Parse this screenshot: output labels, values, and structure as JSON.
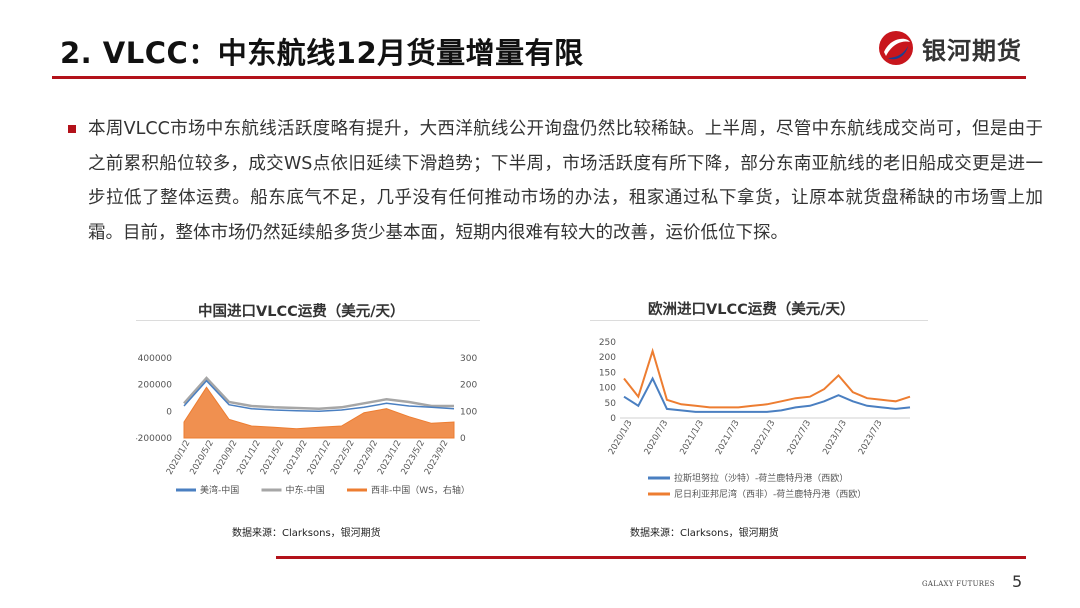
{
  "slide": {
    "title": "2. VLCC：中东航线12月货量增量有限",
    "logo_text": "银河期货",
    "paragraph": "本周VLCC市场中东航线活跃度略有提升，大西洋航线公开询盘仍然比较稀缺。上半周，尽管中东航线成交尚可，但是由于之前累积船位较多，成交WS点依旧延续下滑趋势；下半周，市场活跃度有所下降，部分东南亚航线的老旧船成交更是进一步拉低了整体运费。船东底气不足，几乎没有任何推动市场的办法，租家通过私下拿货，让原本就货盘稀缺的市场雪上加霜。目前，整体市场仍然延续船多货少基本面，短期内很难有较大的改善，运价低位下探。",
    "footer_brand": "GALAXY FUTURES",
    "page_number": "5",
    "colors": {
      "accent_red": "#b3121a"
    }
  },
  "chart_data": [
    {
      "type": "line",
      "title": "中国进口VLCC运费（美元/天）",
      "source": "数据来源：Clarksons，银河期货",
      "y_left": {
        "ticks": [
          "400000",
          "200000",
          "0",
          "-200000"
        ],
        "range": [
          -200000,
          400000
        ]
      },
      "y_right": {
        "ticks": [
          "300",
          "200",
          "100",
          "0"
        ],
        "range": [
          0,
          300
        ]
      },
      "x_ticks": [
        "2020/1/2",
        "2020/5/2",
        "2020/9/2",
        "2021/1/2",
        "2021/5/2",
        "2021/9/2",
        "2022/1/2",
        "2022/5/2",
        "2022/9/2",
        "2023/1/2",
        "2023/5/2",
        "2023/9/2"
      ],
      "legend_position": "bottom",
      "series": [
        {
          "name": "美湾-中国",
          "axis": "left",
          "color": "#4a7fc1",
          "values": [
            40000,
            230000,
            50000,
            20000,
            10000,
            5000,
            0,
            10000,
            30000,
            60000,
            40000,
            30000,
            20000
          ]
        },
        {
          "name": "中东-中国",
          "axis": "left",
          "color": "#a6a6a6",
          "values": [
            60000,
            250000,
            70000,
            40000,
            30000,
            25000,
            20000,
            30000,
            60000,
            90000,
            70000,
            40000,
            40000
          ]
        },
        {
          "name": "西非-中国（WS，右轴）",
          "axis": "right",
          "color": "#ed7d31",
          "values": [
            60,
            190,
            70,
            45,
            40,
            35,
            40,
            45,
            95,
            110,
            80,
            55,
            60
          ]
        }
      ]
    },
    {
      "type": "line",
      "title": "欧洲进口VLCC运费（美元/天）",
      "source": "数据来源：Clarksons，银河期货",
      "y": {
        "ticks": [
          "250",
          "200",
          "150",
          "100",
          "50",
          "0"
        ],
        "range": [
          0,
          250
        ]
      },
      "x_ticks": [
        "2020/1/3",
        "2020/7/3",
        "2021/1/3",
        "2021/7/3",
        "2022/1/3",
        "2022/7/3",
        "2023/1/3",
        "2023/7/3"
      ],
      "legend_position": "bottom",
      "series": [
        {
          "name": "拉斯坦努拉（沙特）-荷兰鹿特丹港（西欧）",
          "color": "#4a7fc1",
          "values": [
            70,
            40,
            130,
            30,
            25,
            20,
            20,
            20,
            20,
            20,
            20,
            25,
            35,
            40,
            55,
            75,
            55,
            40,
            35,
            30,
            35
          ]
        },
        {
          "name": "尼日利亚邦尼湾（西非）-荷兰鹿特丹港（西欧）",
          "color": "#ed7d31",
          "values": [
            130,
            70,
            220,
            60,
            45,
            40,
            35,
            35,
            35,
            40,
            45,
            55,
            65,
            70,
            95,
            140,
            85,
            65,
            60,
            55,
            70
          ]
        }
      ]
    }
  ]
}
